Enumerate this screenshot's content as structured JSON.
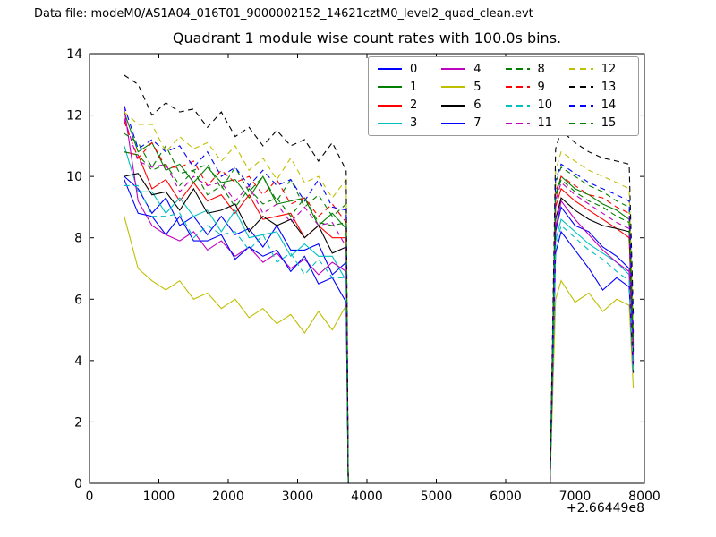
{
  "header": {
    "datafile": "Data file: modeM0/AS1A04_016T01_9000002152_14621cztM0_level2_quad_clean.evt"
  },
  "chart_data": {
    "type": "line",
    "title": "Quadrant 1 module wise count rates with 100.0s bins.",
    "xlabel": "",
    "ylabel": "",
    "xlim": [
      0,
      8000
    ],
    "ylim": [
      0,
      14
    ],
    "xticks": [
      0,
      1000,
      2000,
      3000,
      4000,
      5000,
      6000,
      7000,
      8000
    ],
    "yticks": [
      0,
      2,
      4,
      6,
      8,
      10,
      12,
      14
    ],
    "x_offset_label": "+2.66449e8",
    "grid": false,
    "legend_position": "upper center",
    "legend_columns": 4,
    "x": [
      500,
      700,
      900,
      1100,
      1300,
      1500,
      1700,
      1900,
      2100,
      2300,
      2500,
      2700,
      2900,
      3100,
      3300,
      3500,
      3700,
      3730,
      6640,
      6720,
      6800,
      7000,
      7200,
      7400,
      7600,
      7780,
      7840
    ],
    "series": [
      {
        "name": "0",
        "color": "#0000ff",
        "style": "solid",
        "y": [
          10.0,
          9.6,
          8.8,
          9.3,
          8.4,
          8.7,
          8.1,
          8.7,
          8.1,
          8.3,
          7.7,
          8.4,
          7.6,
          7.6,
          7.8,
          6.8,
          7.2,
          0,
          0,
          8.2,
          9.0,
          8.4,
          8.2,
          7.7,
          7.4,
          7.0,
          4.0
        ]
      },
      {
        "name": "1",
        "color": "#007f00",
        "style": "solid",
        "y": [
          12.1,
          10.8,
          11.1,
          10.2,
          10.4,
          9.8,
          10.3,
          9.8,
          9.9,
          9.3,
          10.0,
          9.1,
          9.2,
          9.3,
          8.4,
          8.8,
          8.3,
          0,
          0,
          9.4,
          10.0,
          9.6,
          9.4,
          9.1,
          8.9,
          8.6,
          4.5
        ]
      },
      {
        "name": "2",
        "color": "#ff0000",
        "style": "solid",
        "y": [
          10.8,
          10.7,
          9.6,
          9.9,
          9.2,
          9.8,
          9.2,
          9.4,
          8.8,
          9.4,
          8.6,
          8.7,
          8.8,
          8.0,
          8.4,
          8.0,
          8.0,
          0,
          0,
          9.0,
          9.6,
          9.2,
          8.9,
          8.6,
          8.3,
          8.0,
          4.2
        ]
      },
      {
        "name": "3",
        "color": "#00bfbf",
        "style": "solid",
        "y": [
          11.0,
          9.5,
          9.5,
          8.8,
          9.3,
          8.7,
          8.9,
          8.2,
          8.9,
          8.0,
          8.1,
          8.2,
          7.4,
          7.8,
          7.4,
          7.4,
          6.6,
          0,
          0,
          7.9,
          8.6,
          8.2,
          7.8,
          7.5,
          7.2,
          6.8,
          3.8
        ]
      },
      {
        "name": "4",
        "color": "#bf00bf",
        "style": "solid",
        "y": [
          12.2,
          9.2,
          8.4,
          8.1,
          7.9,
          8.2,
          7.6,
          7.9,
          7.4,
          7.7,
          7.2,
          7.5,
          7.0,
          7.3,
          6.8,
          7.2,
          6.9,
          0,
          0,
          8.3,
          9.2,
          8.6,
          8.1,
          7.6,
          7.2,
          6.9,
          3.9
        ]
      },
      {
        "name": "5",
        "color": "#bfbf00",
        "style": "solid",
        "y": [
          8.7,
          7.0,
          6.6,
          6.3,
          6.6,
          6.0,
          6.2,
          5.7,
          6.0,
          5.4,
          5.7,
          5.2,
          5.5,
          4.9,
          5.6,
          5.0,
          5.8,
          0,
          0,
          6.0,
          6.6,
          5.9,
          6.2,
          5.6,
          6.0,
          5.8,
          3.1
        ]
      },
      {
        "name": "6",
        "color": "#000000",
        "style": "solid",
        "y": [
          10.0,
          10.1,
          9.4,
          9.5,
          8.9,
          9.6,
          8.8,
          8.9,
          9.1,
          8.2,
          8.7,
          8.4,
          8.6,
          8.0,
          8.4,
          7.5,
          7.7,
          0,
          0,
          8.6,
          9.3,
          8.9,
          8.6,
          8.4,
          8.3,
          8.2,
          4.3
        ]
      },
      {
        "name": "7",
        "color": "#0000ff",
        "style": "solid",
        "y": [
          9.9,
          8.8,
          8.7,
          8.1,
          8.7,
          7.9,
          7.9,
          8.1,
          7.3,
          7.7,
          7.4,
          7.6,
          6.9,
          7.4,
          6.5,
          6.7,
          5.9,
          0,
          0,
          7.5,
          8.2,
          7.6,
          7.0,
          6.3,
          6.7,
          6.4,
          3.6
        ]
      },
      {
        "name": "8",
        "color": "#007f00",
        "style": "dashed",
        "y": [
          11.4,
          11.1,
          10.3,
          11.0,
          10.1,
          10.2,
          10.4,
          9.6,
          10.3,
          9.5,
          10.0,
          9.2,
          9.9,
          9.0,
          9.4,
          8.7,
          9.1,
          0,
          0,
          9.8,
          10.3,
          10.0,
          9.7,
          9.5,
          9.2,
          9.0,
          4.8
        ]
      },
      {
        "name": "9",
        "color": "#ff0000",
        "style": "dashed",
        "y": [
          11.8,
          10.6,
          11.1,
          10.3,
          10.3,
          10.5,
          9.7,
          10.2,
          9.8,
          10.0,
          9.4,
          9.9,
          9.1,
          9.3,
          8.7,
          9.1,
          8.5,
          0,
          0,
          9.5,
          10.0,
          9.7,
          9.4,
          9.3,
          9.0,
          8.8,
          4.6
        ]
      },
      {
        "name": "10",
        "color": "#00bfbf",
        "style": "dashed",
        "y": [
          9.7,
          9.7,
          8.7,
          8.7,
          8.8,
          8.0,
          8.4,
          8.1,
          8.2,
          7.6,
          8.1,
          7.2,
          7.5,
          6.8,
          7.3,
          6.7,
          6.7,
          0,
          0,
          7.7,
          8.4,
          8.0,
          7.6,
          7.3,
          6.9,
          6.6,
          3.7
        ]
      },
      {
        "name": "11",
        "color": "#bf00bf",
        "style": "dashed",
        "y": [
          11.9,
          10.5,
          10.3,
          10.4,
          9.5,
          10.0,
          9.7,
          9.8,
          9.2,
          9.7,
          8.8,
          9.1,
          8.5,
          9.0,
          8.4,
          8.5,
          7.7,
          0,
          0,
          9.2,
          9.8,
          9.4,
          9.1,
          8.8,
          8.5,
          8.3,
          4.4
        ]
      },
      {
        "name": "12",
        "color": "#bfbf00",
        "style": "dashed",
        "y": [
          12.1,
          11.7,
          11.7,
          10.8,
          11.3,
          10.9,
          11.1,
          10.5,
          11.0,
          10.2,
          10.6,
          9.9,
          10.6,
          9.8,
          10.0,
          9.3,
          9.9,
          0,
          0,
          10.2,
          10.8,
          10.5,
          10.2,
          10.0,
          9.8,
          9.6,
          5.0
        ]
      },
      {
        "name": "13",
        "color": "#000000",
        "style": "dashed",
        "y": [
          13.3,
          13.0,
          12.0,
          12.4,
          12.1,
          12.2,
          11.6,
          12.1,
          11.3,
          11.6,
          11.0,
          11.5,
          11.0,
          11.2,
          10.5,
          11.1,
          10.2,
          0,
          0,
          10.9,
          11.5,
          11.1,
          10.8,
          10.6,
          10.5,
          10.4,
          5.5
        ]
      },
      {
        "name": "14",
        "color": "#0000ff",
        "style": "dashed",
        "y": [
          12.3,
          10.9,
          11.2,
          10.8,
          11.0,
          10.3,
          10.8,
          10.0,
          10.3,
          9.7,
          10.2,
          9.7,
          9.9,
          9.2,
          9.9,
          9.0,
          8.9,
          0,
          0,
          9.9,
          10.4,
          10.1,
          9.8,
          9.6,
          9.4,
          9.2,
          4.9
        ]
      },
      {
        "name": "15",
        "color": "#007f00",
        "style": "dashed",
        "y": [
          10.8,
          10.7,
          10.2,
          10.4,
          9.7,
          10.2,
          9.4,
          9.7,
          9.0,
          9.6,
          9.1,
          9.3,
          8.7,
          9.3,
          8.5,
          8.4,
          8.5,
          0,
          0,
          9.3,
          9.9,
          9.5,
          9.2,
          9.0,
          8.7,
          8.5,
          4.5
        ]
      }
    ]
  }
}
